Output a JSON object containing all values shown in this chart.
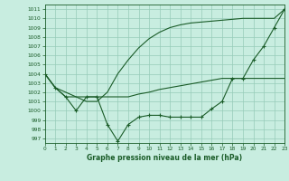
{
  "title": "Graphe pression niveau de la mer (hPa)",
  "bg_color": "#c8ede0",
  "grid_color": "#96cbb8",
  "line_color": "#1a5c28",
  "xlim": [
    0,
    23
  ],
  "ylim": [
    996.5,
    1011.5
  ],
  "ytick_vals": [
    997,
    998,
    999,
    1000,
    1001,
    1002,
    1003,
    1004,
    1005,
    1006,
    1007,
    1008,
    1009,
    1010,
    1011
  ],
  "xtick_vals": [
    0,
    1,
    2,
    3,
    4,
    5,
    6,
    7,
    8,
    9,
    10,
    11,
    12,
    13,
    14,
    15,
    16,
    17,
    18,
    19,
    20,
    21,
    22,
    23
  ],
  "s1_x": [
    0,
    1,
    2,
    3,
    4,
    5,
    6,
    7,
    8,
    9,
    10,
    11,
    12,
    13,
    14,
    15,
    16,
    17,
    18,
    19,
    20,
    21,
    22,
    23
  ],
  "s1_y": [
    1004.0,
    1002.5,
    1001.5,
    1001.5,
    1001.5,
    1001.5,
    1001.5,
    1001.5,
    1001.5,
    1001.8,
    1002.0,
    1002.3,
    1002.5,
    1002.7,
    1002.9,
    1003.1,
    1003.3,
    1003.5,
    1003.5,
    1003.5,
    1003.5,
    1003.5,
    1003.5,
    1003.5
  ],
  "s2_x": [
    0,
    1,
    2,
    3,
    4,
    5,
    6,
    7,
    8,
    9,
    10,
    11,
    12,
    13,
    14,
    15,
    16,
    17,
    18,
    19,
    20,
    21,
    22,
    23
  ],
  "s2_y": [
    1004.0,
    1002.5,
    1002.0,
    1001.5,
    1001.0,
    1001.0,
    1002.0,
    1004.0,
    1005.5,
    1006.8,
    1007.8,
    1008.5,
    1009.0,
    1009.3,
    1009.5,
    1009.6,
    1009.7,
    1009.8,
    1009.9,
    1010.0,
    1010.0,
    1010.0,
    1010.0,
    1011.0
  ],
  "s3_x": [
    0,
    1,
    2,
    3,
    4,
    5,
    6,
    7,
    8,
    9,
    10,
    11,
    12,
    13,
    14,
    15,
    16,
    17,
    18,
    19,
    20,
    21,
    22,
    23
  ],
  "s3_y": [
    1004.0,
    1002.5,
    1001.5,
    1000.0,
    1001.5,
    1001.5,
    998.5,
    996.7,
    998.5,
    999.3,
    999.5,
    999.5,
    999.3,
    999.3,
    999.3,
    999.3,
    1000.2,
    1001.0,
    1003.5,
    1003.5,
    1005.5,
    1007.0,
    1009.0,
    1011.0
  ]
}
